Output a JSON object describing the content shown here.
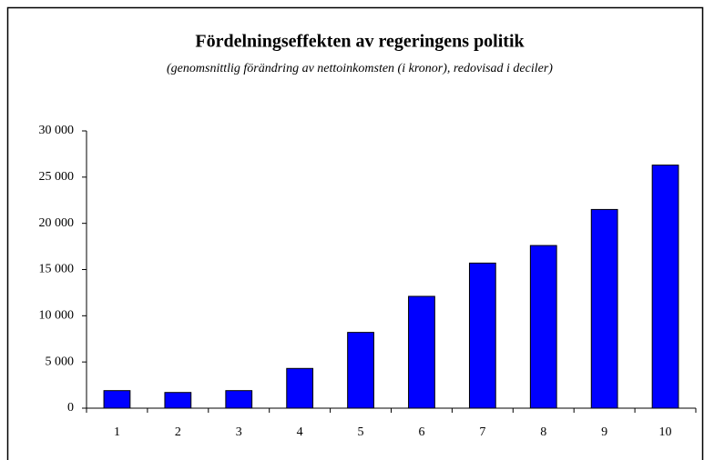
{
  "chart_data": {
    "type": "bar",
    "title": "Fördelningseffekten av regeringens politik",
    "subtitle": "(genomsnittlig förändring av nettoinkomsten (i kronor), redovisad i deciler)",
    "categories": [
      "1",
      "2",
      "3",
      "4",
      "5",
      "6",
      "7",
      "8",
      "9",
      "10"
    ],
    "values": [
      1900,
      1700,
      1900,
      4300,
      8200,
      12100,
      15700,
      17600,
      21500,
      26300
    ],
    "color": "#0000ff",
    "ylim": [
      0,
      30000
    ],
    "yticks": [
      {
        "value": 0,
        "label": "0"
      },
      {
        "value": 5000,
        "label": "5 000"
      },
      {
        "value": 10000,
        "label": "10 000"
      },
      {
        "value": 15000,
        "label": "15 000"
      },
      {
        "value": 20000,
        "label": "20 000"
      },
      {
        "value": 25000,
        "label": "25 000"
      },
      {
        "value": 30000,
        "label": "30 000"
      }
    ],
    "grid": false
  }
}
